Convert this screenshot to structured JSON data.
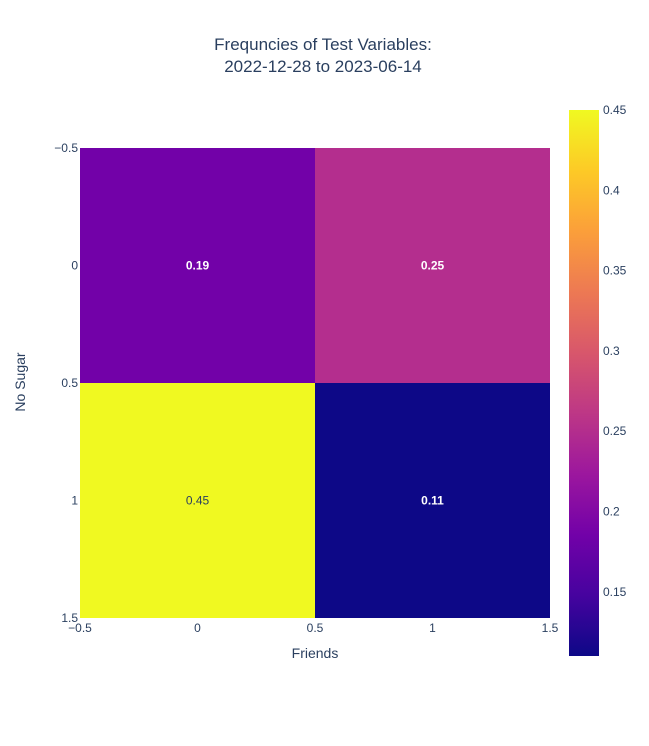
{
  "chart_data": {
    "type": "heatmap",
    "title_lines": [
      "Frequncies of Test Variables:",
      "2022-12-28 to 2023-06-14"
    ],
    "xlabel": "Friends",
    "ylabel": "No Sugar",
    "x": [
      0,
      1
    ],
    "y": [
      0,
      1
    ],
    "z": [
      [
        0.19,
        0.25
      ],
      [
        0.45,
        0.11
      ]
    ],
    "text": [
      [
        "0.19",
        "0.25"
      ],
      [
        "0.45",
        "0.11"
      ]
    ],
    "cell_colors": [
      [
        "#7201a8",
        "#b42e8e"
      ],
      [
        "#f0f921",
        "#0d0887"
      ]
    ],
    "cell_text_colors": [
      [
        "#ffffff",
        "#ffffff"
      ],
      [
        "#2a3f5f",
        "#ffffff"
      ]
    ],
    "x_ticks": [
      {
        "value": -0.5,
        "label": "−0.5"
      },
      {
        "value": 0,
        "label": "0"
      },
      {
        "value": 0.5,
        "label": "0.5"
      },
      {
        "value": 1,
        "label": "1"
      },
      {
        "value": 1.5,
        "label": "1.5"
      }
    ],
    "y_ticks": [
      {
        "value": -0.5,
        "label": "−0.5"
      },
      {
        "value": 0,
        "label": "0"
      },
      {
        "value": 0.5,
        "label": "0.5"
      },
      {
        "value": 1,
        "label": "1"
      },
      {
        "value": 1.5,
        "label": "1.5"
      }
    ],
    "xlim": [
      -0.5,
      1.5
    ],
    "ylim": [
      -0.5,
      1.5
    ],
    "y_reversed": true,
    "grid": false,
    "colorscale": "Plasma",
    "colorbar": {
      "zmin": 0.11,
      "zmax": 0.45,
      "ticks": [
        {
          "value": 0.15,
          "label": "0.15"
        },
        {
          "value": 0.2,
          "label": "0.2"
        },
        {
          "value": 0.25,
          "label": "0.25"
        },
        {
          "value": 0.3,
          "label": "0.3"
        },
        {
          "value": 0.35,
          "label": "0.35"
        },
        {
          "value": 0.4,
          "label": "0.4"
        },
        {
          "value": 0.45,
          "label": "0.45"
        }
      ]
    }
  }
}
